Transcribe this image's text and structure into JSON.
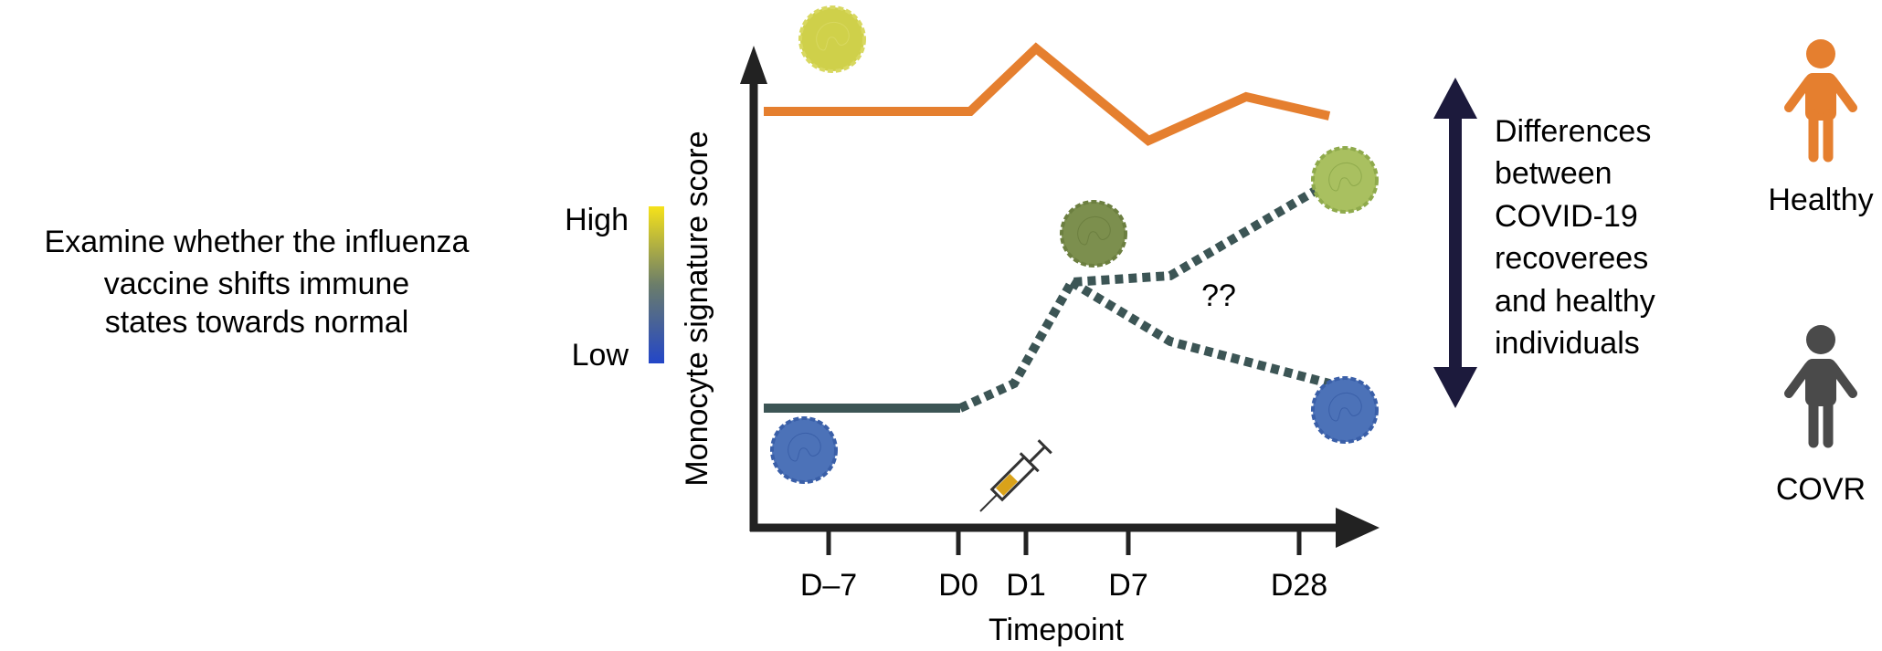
{
  "left_text": {
    "lines": [
      "Examine whether the influenza",
      "vaccine shifts immune",
      "states towards normal"
    ]
  },
  "colorbar": {
    "high": "High",
    "low": "Low"
  },
  "y_axis_label": "Monocyte signature score",
  "x_axis_label": "Timepoint",
  "x_ticks": [
    "D–7",
    "D0",
    "D1",
    "D7",
    "D28"
  ],
  "annotation": "??",
  "right_text": {
    "lines": [
      "Differences",
      "between",
      "COVID-19",
      "recoverees",
      "and healthy",
      "individuals"
    ]
  },
  "legend": {
    "healthy": "Healthy",
    "covr": "COVR"
  }
}
